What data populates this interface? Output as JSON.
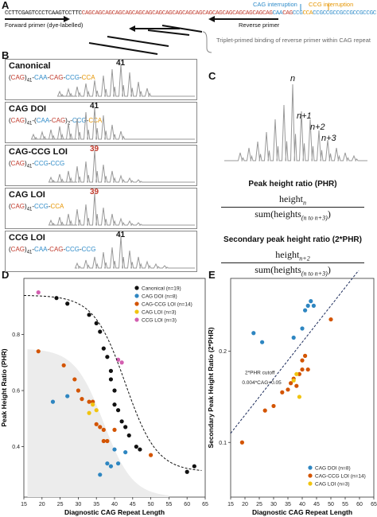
{
  "panels": {
    "a": "A",
    "b": "B",
    "c": "C",
    "d": "D",
    "e": "E"
  },
  "panel_a": {
    "seq_black": "CCTTCGAGTCCCTCAAGTCCTTC",
    "seq_red": "CAGCAGCAGCAGCAGCAGCAGCAGCAGCAGCAGCAGCAGCAGCAGCAGCAGCAGCAG",
    "seq_caa": "CAA",
    "seq_cag": "CAG",
    "seq_ccg": "CCG",
    "seq_cca": "CCA",
    "seq_tail": "CCGCCGCCGCCGCCGCCGC",
    "cag_interruption": "CAG interruption",
    "ccg_interruption": "CCG interruption",
    "forward_primer": "Forward primer (dye-labelled)",
    "reverse_primer": "Reverse primer",
    "triplet_note": "Triplet-primed binding of reverse primer within CAG repeat"
  },
  "panel_b": {
    "traces": [
      {
        "title": "Canonical",
        "formula": [
          {
            "t": "(",
            "c": "#111"
          },
          {
            "t": "CAG",
            "c": "#c0392b"
          },
          {
            "t": ")",
            "c": "#111"
          },
          {
            "t": "41",
            "c": "#111",
            "sub": true
          },
          {
            "t": "-",
            "c": "#111"
          },
          {
            "t": "CAA",
            "c": "#2e8bc9"
          },
          {
            "t": "-",
            "c": "#111"
          },
          {
            "t": "CAG",
            "c": "#c0392b"
          },
          {
            "t": "-",
            "c": "#111"
          },
          {
            "t": "CCG",
            "c": "#2e8bc9"
          },
          {
            "t": "-",
            "c": "#111"
          },
          {
            "t": "CCA",
            "c": "#e69500"
          }
        ],
        "peak_label": "41",
        "peak_color": "#111"
      },
      {
        "title": "CAG DOI",
        "formula": [
          {
            "t": "(",
            "c": "#111"
          },
          {
            "t": "CAG",
            "c": "#c0392b"
          },
          {
            "t": ")",
            "c": "#111"
          },
          {
            "t": "41",
            "c": "#111",
            "sub": true
          },
          {
            "t": "-(",
            "c": "#111"
          },
          {
            "t": "CAA",
            "c": "#2e8bc9"
          },
          {
            "t": "-",
            "c": "#111"
          },
          {
            "t": "CAG",
            "c": "#c0392b"
          },
          {
            "t": ")",
            "c": "#111"
          },
          {
            "t": "2",
            "c": "#111",
            "sub": true
          },
          {
            "t": "-",
            "c": "#111"
          },
          {
            "t": "CCG",
            "c": "#2e8bc9"
          },
          {
            "t": "-",
            "c": "#111"
          },
          {
            "t": "CCA",
            "c": "#e69500"
          }
        ],
        "peak_label": "41",
        "peak_color": "#111"
      },
      {
        "title": "CAG-CCG LOI",
        "formula": [
          {
            "t": "(",
            "c": "#111"
          },
          {
            "t": "CAG",
            "c": "#c0392b"
          },
          {
            "t": ")",
            "c": "#111"
          },
          {
            "t": "41",
            "c": "#111",
            "sub": true
          },
          {
            "t": "-",
            "c": "#111"
          },
          {
            "t": "CCG",
            "c": "#2e8bc9"
          },
          {
            "t": "-",
            "c": "#111"
          },
          {
            "t": "CCG",
            "c": "#2e8bc9"
          }
        ],
        "peak_label": "39",
        "peak_color": "#c0392b"
      },
      {
        "title": "CAG LOI",
        "formula": [
          {
            "t": "(",
            "c": "#111"
          },
          {
            "t": "CAG",
            "c": "#c0392b"
          },
          {
            "t": ")",
            "c": "#111"
          },
          {
            "t": "41",
            "c": "#111",
            "sub": true
          },
          {
            "t": "-",
            "c": "#111"
          },
          {
            "t": "CCG",
            "c": "#2e8bc9"
          },
          {
            "t": "-",
            "c": "#111"
          },
          {
            "t": "CCA",
            "c": "#e69500"
          }
        ],
        "peak_label": "39",
        "peak_color": "#c0392b"
      },
      {
        "title": "CCG LOI",
        "formula": [
          {
            "t": "(",
            "c": "#111"
          },
          {
            "t": "CAG",
            "c": "#c0392b"
          },
          {
            "t": ")",
            "c": "#111"
          },
          {
            "t": "41",
            "c": "#111",
            "sub": true
          },
          {
            "t": "-",
            "c": "#111"
          },
          {
            "t": "CAA",
            "c": "#2e8bc9"
          },
          {
            "t": "-",
            "c": "#111"
          },
          {
            "t": "CAG",
            "c": "#c0392b"
          },
          {
            "t": "-",
            "c": "#111"
          },
          {
            "t": "CCG",
            "c": "#2e8bc9"
          },
          {
            "t": "-",
            "c": "#111"
          },
          {
            "t": "CCG",
            "c": "#2e8bc9"
          }
        ],
        "peak_label": "41",
        "peak_color": "#111"
      }
    ]
  },
  "panel_c": {
    "n": "n",
    "n1": "n+1",
    "n2": "n+2",
    "n3": "n+3",
    "phr_title": "Peak height ratio (PHR)",
    "phr_num": "height",
    "phr_num_sub": "n",
    "phr_den": "sum(heights",
    "phr_den_sub": "(n to n+3)",
    "phr_den_close": ")",
    "phr2_title": "Secondary peak height ratio (2*PHR)",
    "phr2_num": "height",
    "phr2_num_sub": "n+2",
    "phr2_den": "sum(heights",
    "phr2_den_sub": "(n to n+3)",
    "phr2_den_close": ")",
    "blue_bg": "#d6e6f5",
    "orange_bg": "#fbdccb"
  },
  "colors": {
    "canonical": "#111111",
    "cag_doi": "#2e86c1",
    "cag_ccg_loi": "#d35400",
    "cag_loi": "#f1c40f",
    "ccg_loi": "#d35fb0"
  },
  "chart_data": [
    {
      "type": "scatter",
      "xlabel": "Diagnostic CAG Repeat Length",
      "ylabel": "Peak Height Ratio (PHR)",
      "xlim": [
        15,
        65
      ],
      "ylim": [
        0.22,
        1.0
      ],
      "xticks": [
        15,
        20,
        25,
        30,
        35,
        40,
        45,
        50,
        55,
        60,
        65
      ],
      "yticks": [
        0.4,
        0.6,
        0.8
      ],
      "legend_position": "top-right",
      "series": [
        {
          "name": "Canonical (n=19)",
          "color": "#111111",
          "points": [
            [
              24,
              0.93
            ],
            [
              27,
              0.91
            ],
            [
              33,
              0.87
            ],
            [
              35,
              0.84
            ],
            [
              36,
              0.81
            ],
            [
              37,
              0.75
            ],
            [
              38,
              0.72
            ],
            [
              39,
              0.67
            ],
            [
              39,
              0.64
            ],
            [
              40,
              0.6
            ],
            [
              40,
              0.55
            ],
            [
              41,
              0.53
            ],
            [
              42,
              0.49
            ],
            [
              43,
              0.47
            ],
            [
              44,
              0.44
            ],
            [
              46,
              0.4
            ],
            [
              47,
              0.39
            ],
            [
              60,
              0.31
            ],
            [
              62,
              0.33
            ]
          ]
        },
        {
          "name": "CAG DOI (n=8)",
          "color": "#2e86c1",
          "points": [
            [
              23,
              0.56
            ],
            [
              27,
              0.58
            ],
            [
              36,
              0.3
            ],
            [
              38,
              0.34
            ],
            [
              39,
              0.33
            ],
            [
              40,
              0.39
            ],
            [
              41,
              0.34
            ],
            [
              43,
              0.38
            ]
          ]
        },
        {
          "name": "CAG-CCG LOI (n=14)",
          "color": "#d35400",
          "points": [
            [
              19,
              0.74
            ],
            [
              26,
              0.69
            ],
            [
              29,
              0.64
            ],
            [
              30,
              0.6
            ],
            [
              31,
              0.57
            ],
            [
              33,
              0.56
            ],
            [
              34,
              0.56
            ],
            [
              35,
              0.48
            ],
            [
              36,
              0.47
            ],
            [
              37,
              0.46
            ],
            [
              37,
              0.42
            ],
            [
              38,
              0.42
            ],
            [
              40,
              0.46
            ],
            [
              50,
              0.37
            ]
          ]
        },
        {
          "name": "CAG LOI (n=3)",
          "color": "#f1c40f",
          "points": [
            [
              33,
              0.52
            ],
            [
              34,
              0.55
            ],
            [
              35,
              0.53
            ]
          ]
        },
        {
          "name": "CCG LOI (n=3)",
          "color": "#d35fb0",
          "points": [
            [
              19,
              0.95
            ],
            [
              41,
              0.71
            ],
            [
              42,
              0.7
            ]
          ]
        }
      ],
      "sigmoid": {
        "top": 0.94,
        "bottom": 0.31,
        "mid": 43,
        "k": 0.23
      }
    },
    {
      "type": "scatter",
      "xlabel": "Diagnostic CAG Repeat Length",
      "ylabel": "Secondary Peak Height Ratio (2*PHR)",
      "xlim": [
        15,
        65
      ],
      "ylim": [
        0.04,
        0.28
      ],
      "xticks": [
        15,
        20,
        25,
        30,
        35,
        40,
        45,
        50,
        55,
        60,
        65
      ],
      "yticks": [
        0.1,
        0.2
      ],
      "cutoff_label": "2*PHR cutoff",
      "cutoff_formula": "0.004*CAG+0.05",
      "cutoff": {
        "slope": 0.004,
        "intercept": 0.05
      },
      "legend_position": "bottom-right",
      "series": [
        {
          "name": "CAG DOI (n=8)",
          "color": "#2e86c1",
          "points": [
            [
              23,
              0.22
            ],
            [
              26,
              0.21
            ],
            [
              37,
              0.215
            ],
            [
              40,
              0.225
            ],
            [
              41,
              0.245
            ],
            [
              42,
              0.25
            ],
            [
              43,
              0.255
            ],
            [
              44,
              0.25
            ]
          ]
        },
        {
          "name": "CAG-CCG LOI (n=14)",
          "color": "#d35400",
          "points": [
            [
              19,
              0.1
            ],
            [
              27,
              0.135
            ],
            [
              30,
              0.14
            ],
            [
              33,
              0.155
            ],
            [
              35,
              0.158
            ],
            [
              36,
              0.165
            ],
            [
              37,
              0.17
            ],
            [
              38,
              0.162
            ],
            [
              39,
              0.175
            ],
            [
              40,
              0.18
            ],
            [
              40,
              0.19
            ],
            [
              41,
              0.195
            ],
            [
              42,
              0.18
            ],
            [
              50,
              0.235
            ]
          ]
        },
        {
          "name": "CAG LOI (n=3)",
          "color": "#f1c40f",
          "points": [
            [
              37,
              0.168
            ],
            [
              38,
              0.175
            ],
            [
              39,
              0.15
            ]
          ]
        }
      ]
    }
  ]
}
